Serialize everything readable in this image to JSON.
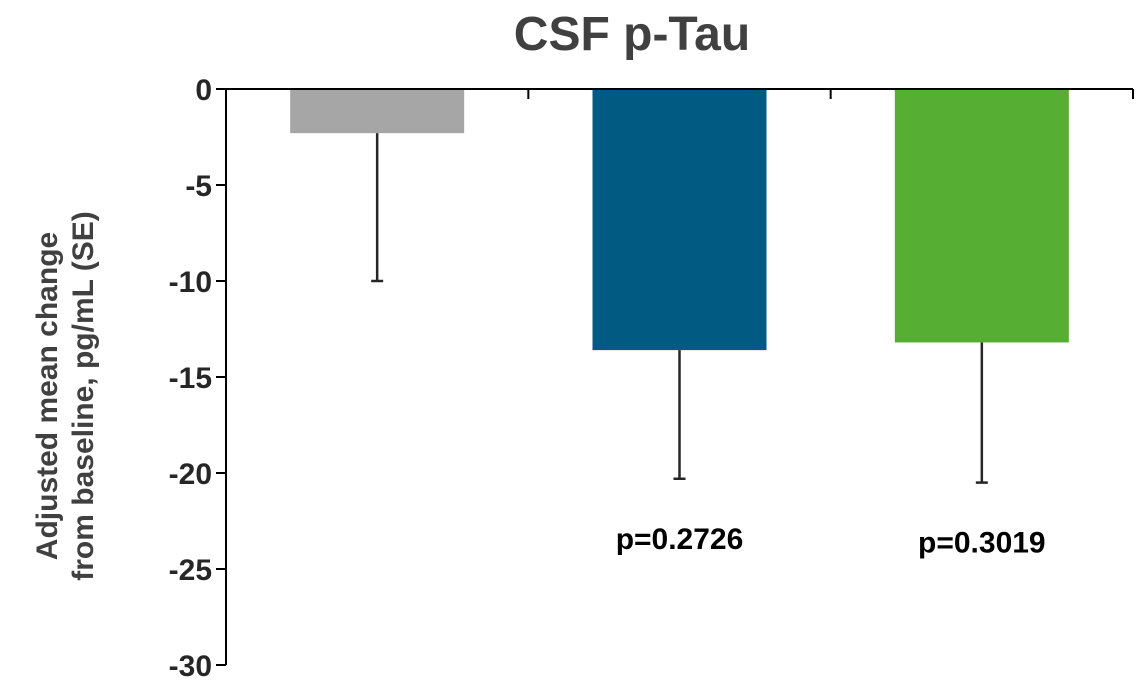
{
  "chart_data": {
    "type": "bar",
    "title": "CSF p-Tau",
    "ylabel_lines": [
      "Adjusted mean change",
      "from baseline, pg/mL (SE)"
    ],
    "xlabel": "",
    "ylim": [
      -30,
      0
    ],
    "yticks": [
      0,
      -5,
      -10,
      -15,
      -20,
      -25,
      -30
    ],
    "grid": false,
    "legend": "none",
    "bars": [
      {
        "value": -2.3,
        "error_low": -10.0,
        "color": "#a6a6a6",
        "annotation": ""
      },
      {
        "value": -13.6,
        "error_low": -20.3,
        "color": "#005a82",
        "annotation": "p=0.2726"
      },
      {
        "value": -13.2,
        "error_low": -20.5,
        "color": "#56ae33",
        "annotation": "p=0.3019"
      }
    ]
  }
}
